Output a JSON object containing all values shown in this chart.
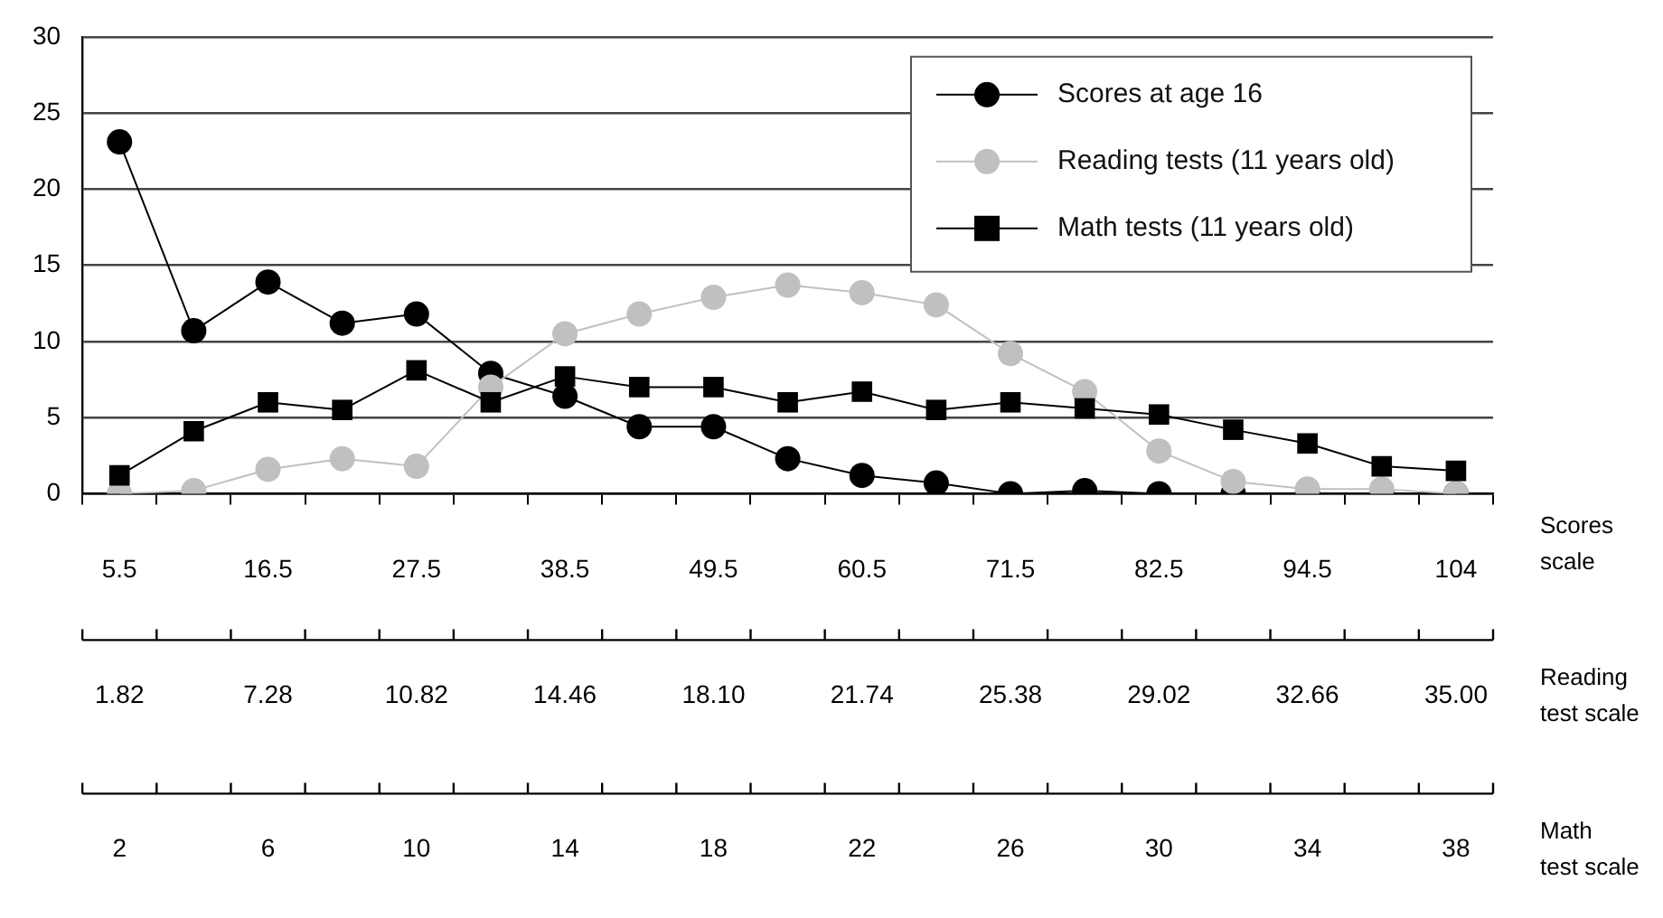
{
  "chart_data": {
    "type": "line",
    "categories": [
      "5.5",
      null,
      "16.5",
      null,
      "27.5",
      null,
      "38.5",
      null,
      "49.5",
      null,
      "60.5",
      null,
      "71.5",
      null,
      "82.5",
      null,
      "94.5",
      null,
      "104"
    ],
    "xlabel": "Scores scale",
    "annotations": [
      "1.82",
      "7.28",
      "10.82",
      "14.46",
      "18.10",
      "21.74",
      "25.38",
      "29.02",
      "32.66",
      "35.00",
      "Reading test scale",
      "2",
      "6",
      "10",
      "14",
      "18",
      "22",
      "26",
      "30",
      "34",
      "38",
      "Math test scale"
    ],
    "series": [
      {
        "name": "Scores at age 16",
        "color": "#000000",
        "marker": "circle",
        "values": [
          23.1,
          10.7,
          13.9,
          11.2,
          11.8,
          7.9,
          6.4,
          4.4,
          4.4,
          2.3,
          1.2,
          0.7,
          0,
          0.2,
          0,
          0,
          0,
          0,
          0
        ]
      },
      {
        "name": "Reading tests (11 years old)",
        "color": "#c0c0c0",
        "marker": "circle",
        "values": [
          0,
          0.2,
          1.6,
          2.3,
          1.8,
          7.0,
          10.5,
          11.8,
          12.9,
          13.7,
          13.2,
          12.4,
          9.2,
          6.7,
          2.8,
          0.8,
          0.3,
          0.3,
          0
        ]
      },
      {
        "name": "Math tests (11 years old)",
        "color": "#000000",
        "marker": "square",
        "values": [
          1.2,
          4.1,
          6.0,
          5.5,
          8.1,
          6.0,
          7.7,
          7.0,
          7.0,
          6.0,
          6.7,
          5.5,
          6.0,
          5.6,
          5.2,
          4.2,
          3.3,
          1.8,
          1.5
        ]
      }
    ],
    "ylim": [
      0,
      30
    ],
    "yticks": [
      0,
      5,
      10,
      15,
      20,
      25,
      30
    ],
    "grid": "y",
    "legend": "top right"
  }
}
